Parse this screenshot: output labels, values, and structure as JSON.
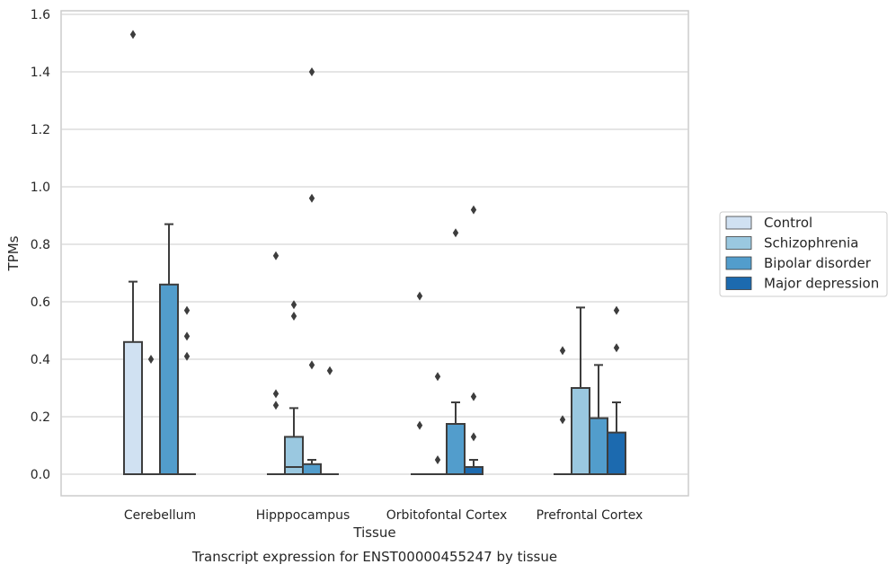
{
  "chart_data": {
    "type": "box",
    "title": "Transcript expression for ENST00000455247 by tissue",
    "xlabel": "Tissue",
    "ylabel": "TPMs",
    "ylim": [
      -0.07,
      1.61
    ],
    "yticks": [
      "0.0",
      "0.2",
      "0.4",
      "0.6",
      "0.8",
      "1.0",
      "1.2",
      "1.4",
      "1.6"
    ],
    "grid": "horizontal",
    "legend_position": "right",
    "categories": [
      "Cerebellum",
      "Hipppocampus",
      "Orbitofontal Cortex",
      "Prefrontal Cortex"
    ],
    "series": [
      {
        "name": "Control",
        "color": "#d0e1f2",
        "boxes": [
          {
            "q1": 0.0,
            "median": 0.0,
            "q3": 0.46,
            "whisker_low": 0.0,
            "whisker_high": 0.67,
            "outliers": [
              1.53
            ]
          },
          {
            "q1": 0.0,
            "median": 0.0,
            "q3": 0.0,
            "whisker_low": 0.0,
            "whisker_high": 0.0,
            "outliers": [
              0.76,
              0.28,
              0.24
            ]
          },
          {
            "q1": 0.0,
            "median": 0.0,
            "q3": 0.0,
            "whisker_low": 0.0,
            "whisker_high": 0.0,
            "outliers": [
              0.62,
              0.17
            ]
          },
          {
            "q1": 0.0,
            "median": 0.0,
            "q3": 0.0,
            "whisker_low": 0.0,
            "whisker_high": 0.0,
            "outliers": [
              0.43,
              0.19
            ]
          }
        ]
      },
      {
        "name": "Schizophrenia",
        "color": "#9ac8e0",
        "boxes": [
          {
            "q1": 0.0,
            "median": 0.0,
            "q3": 0.0,
            "whisker_low": 0.0,
            "whisker_high": 0.0,
            "outliers": [
              0.4
            ]
          },
          {
            "q1": 0.0,
            "median": 0.025,
            "q3": 0.13,
            "whisker_low": 0.0,
            "whisker_high": 0.23,
            "outliers": [
              0.59,
              0.55
            ]
          },
          {
            "q1": 0.0,
            "median": 0.0,
            "q3": 0.0,
            "whisker_low": 0.0,
            "whisker_high": 0.0,
            "outliers": [
              0.34,
              0.05
            ]
          },
          {
            "q1": 0.0,
            "median": 0.0,
            "q3": 0.3,
            "whisker_low": 0.0,
            "whisker_high": 0.58,
            "outliers": []
          }
        ]
      },
      {
        "name": "Bipolar disorder",
        "color": "#529dcc",
        "boxes": [
          {
            "q1": 0.0,
            "median": 0.0,
            "q3": 0.66,
            "whisker_low": 0.0,
            "whisker_high": 0.87,
            "outliers": []
          },
          {
            "q1": 0.0,
            "median": 0.0,
            "q3": 0.035,
            "whisker_low": 0.0,
            "whisker_high": 0.05,
            "outliers": [
              1.4,
              0.96,
              0.38
            ]
          },
          {
            "q1": 0.0,
            "median": 0.0,
            "q3": 0.175,
            "whisker_low": 0.0,
            "whisker_high": 0.25,
            "outliers": [
              0.84
            ]
          },
          {
            "q1": 0.0,
            "median": 0.0,
            "q3": 0.195,
            "whisker_low": 0.0,
            "whisker_high": 0.38,
            "outliers": []
          }
        ]
      },
      {
        "name": "Major depression",
        "color": "#1c6aaf",
        "boxes": [
          {
            "q1": 0.0,
            "median": 0.0,
            "q3": 0.0,
            "whisker_low": 0.0,
            "whisker_high": 0.0,
            "outliers": [
              0.57,
              0.48,
              0.41
            ]
          },
          {
            "q1": 0.0,
            "median": 0.0,
            "q3": 0.0,
            "whisker_low": 0.0,
            "whisker_high": 0.0,
            "outliers": [
              0.36
            ]
          },
          {
            "q1": 0.0,
            "median": 0.0,
            "q3": 0.025,
            "whisker_low": 0.0,
            "whisker_high": 0.05,
            "outliers": [
              0.92,
              0.27,
              0.13
            ]
          },
          {
            "q1": 0.0,
            "median": 0.0,
            "q3": 0.145,
            "whisker_low": 0.0,
            "whisker_high": 0.25,
            "outliers": [
              0.57,
              0.44
            ]
          }
        ]
      }
    ]
  }
}
